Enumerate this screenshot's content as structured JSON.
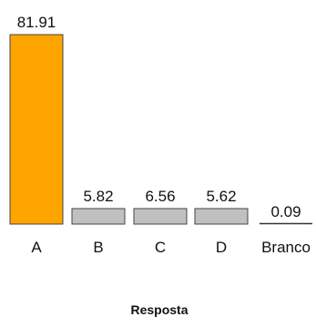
{
  "chart_data": {
    "type": "bar",
    "categories": [
      "A",
      "B",
      "C",
      "D",
      "Branco"
    ],
    "values": [
      81.91,
      5.82,
      6.56,
      5.62,
      0.09
    ],
    "value_labels": [
      "81.91",
      "5.82",
      "6.56",
      "5.62",
      "0.09"
    ],
    "title": "",
    "xlabel": "Resposta",
    "ylabel": "",
    "ylim": [
      0,
      81.91
    ],
    "grid": false,
    "legend": "none",
    "colors": {
      "highlight": "#FFA500",
      "default": "#C0C0C0",
      "bar_stroke": "#444444"
    }
  }
}
